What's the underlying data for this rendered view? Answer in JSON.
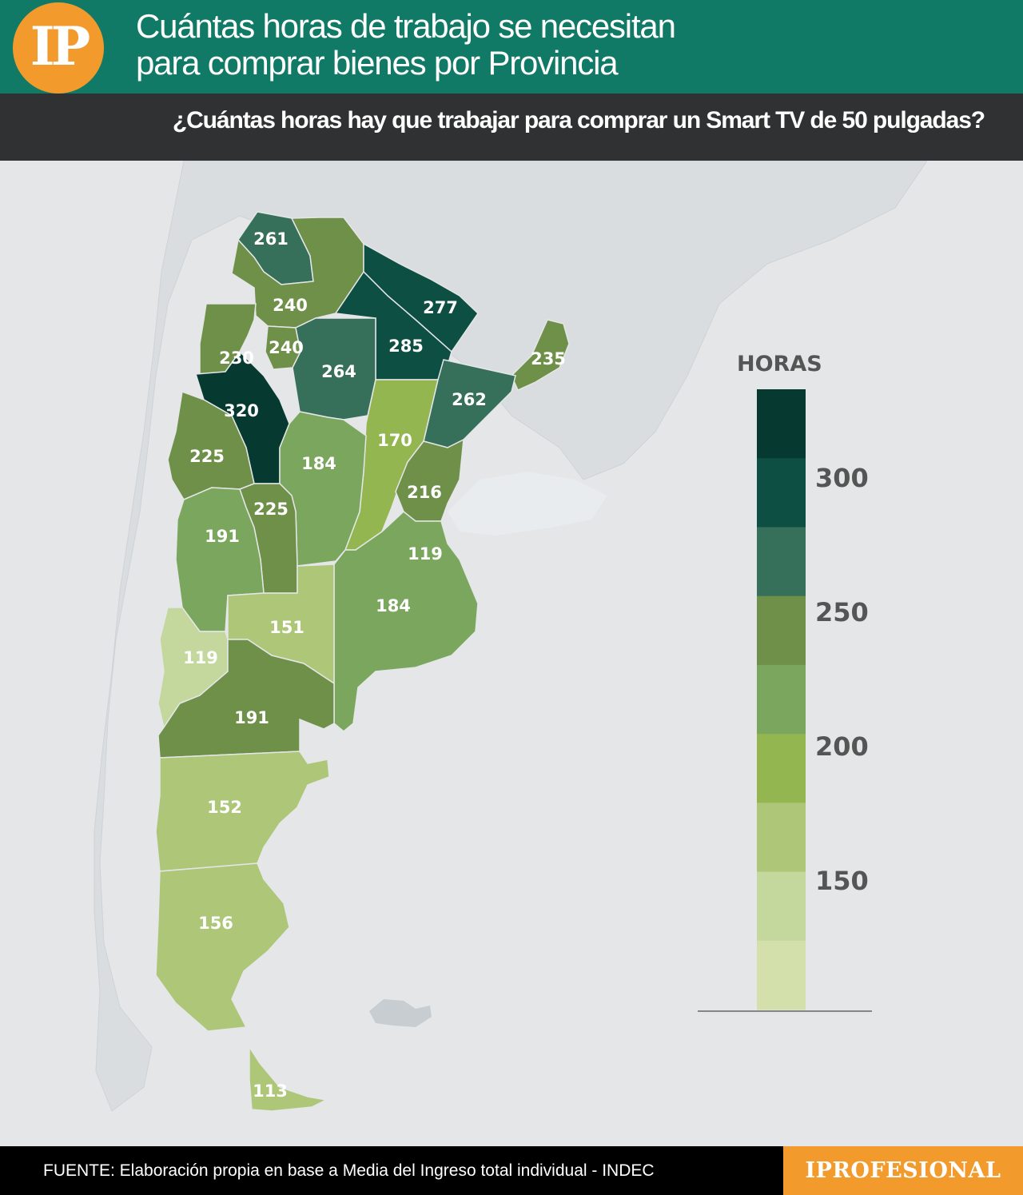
{
  "header": {
    "logo": "IP",
    "title_line1": "Cuántas horas de trabajo se necesitan",
    "title_line2": "para comprar bienes por Provincia",
    "subtitle": "¿Cuántas horas hay que trabajar para comprar un Smart TV de 50 pulgadas?"
  },
  "legend": {
    "title": "HORAS",
    "ticks": [
      "300",
      "250",
      "200",
      "150"
    ],
    "colors": [
      "#063a31",
      "#0e4f43",
      "#37705a",
      "#6f9048",
      "#7aa75d",
      "#93b651",
      "#adc678",
      "#c4d79d",
      "#d3e0ac"
    ]
  },
  "map": {
    "labels": [
      "261",
      "240",
      "277",
      "240",
      "230",
      "285",
      "264",
      "235",
      "262",
      "320",
      "170",
      "225",
      "184",
      "216",
      "225",
      "191",
      "119",
      "184",
      "151",
      "119",
      "191",
      "152",
      "156",
      "113"
    ]
  },
  "footer": {
    "source": "FUENTE: Elaboración propia en base a Media del Ingreso total individual - INDEC",
    "brand": "IPROFESIONAL"
  }
}
